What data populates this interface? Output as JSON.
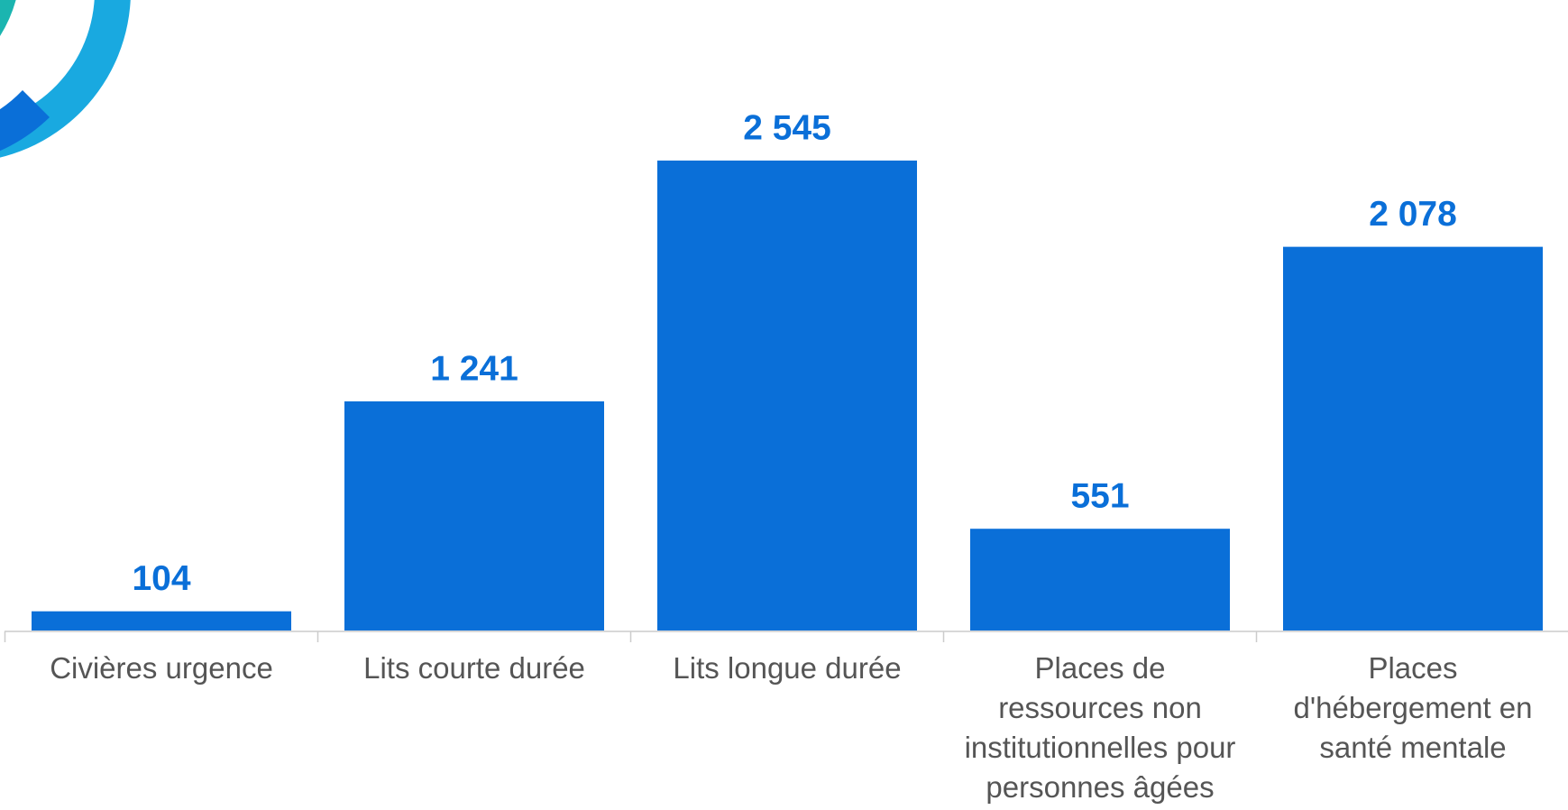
{
  "chart_data": {
    "type": "bar",
    "categories": [
      "Civières urgence",
      "Lits courte durée",
      "Lits longue durée",
      "Places de\nressources non\ninstitutionnelles pour\npersonnes âgées",
      "Places\nd'hébergement en\nsanté mentale"
    ],
    "values": [
      104,
      1241,
      2545,
      551,
      2078
    ],
    "value_labels": [
      "104",
      "1 241",
      "2 545",
      "551",
      "2 078"
    ],
    "color": "#0a6fd8",
    "ylim": [
      0,
      3400
    ]
  }
}
